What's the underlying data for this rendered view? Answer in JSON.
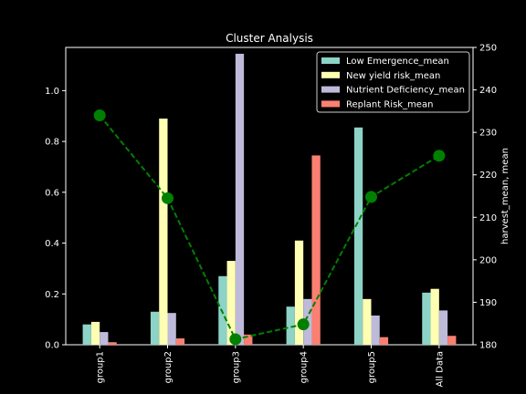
{
  "chart_data": {
    "type": "bar",
    "title": "Cluster Analysis",
    "xlabel": "",
    "ylabel": "",
    "ylabel_right": "harvest_mean, mean",
    "categories": [
      "group1",
      "group2",
      "group3",
      "group4",
      "group5",
      "All Data"
    ],
    "ylim": [
      0,
      1.17
    ],
    "yticks": [
      0.0,
      0.2,
      0.4,
      0.6,
      0.8,
      1.0
    ],
    "ytick_labels": [
      "0.0",
      "0.2",
      "0.4",
      "0.6",
      "0.8",
      "1.0"
    ],
    "y2lim": [
      180,
      250
    ],
    "y2ticks": [
      180,
      190,
      200,
      210,
      220,
      230,
      240,
      250
    ],
    "y2tick_labels": [
      "180",
      "190",
      "200",
      "210",
      "220",
      "230",
      "240",
      "250"
    ],
    "legend_position": "top-right",
    "grid": false,
    "series": [
      {
        "name": "Low Emergence_mean",
        "color": "#8dd3c7",
        "values": [
          0.08,
          0.13,
          0.27,
          0.15,
          0.855,
          0.205
        ]
      },
      {
        "name": "New yield risk_mean",
        "color": "#ffffb3",
        "values": [
          0.09,
          0.89,
          0.33,
          0.41,
          0.18,
          0.22
        ]
      },
      {
        "name": "Nutrient Deficiency_mean",
        "color": "#bebada",
        "values": [
          0.05,
          0.125,
          1.145,
          0.18,
          0.115,
          0.135
        ]
      },
      {
        "name": "Replant Risk_mean",
        "color": "#fb8072",
        "values": [
          0.01,
          0.025,
          0.04,
          0.745,
          0.03,
          0.035
        ]
      }
    ],
    "line_series": {
      "name": "harvest_mean",
      "axis": "right",
      "color": "#008000",
      "style": "dashed",
      "marker": "circle",
      "values": [
        234,
        214.5,
        181.3,
        184.8,
        214.8,
        224.5
      ]
    }
  }
}
